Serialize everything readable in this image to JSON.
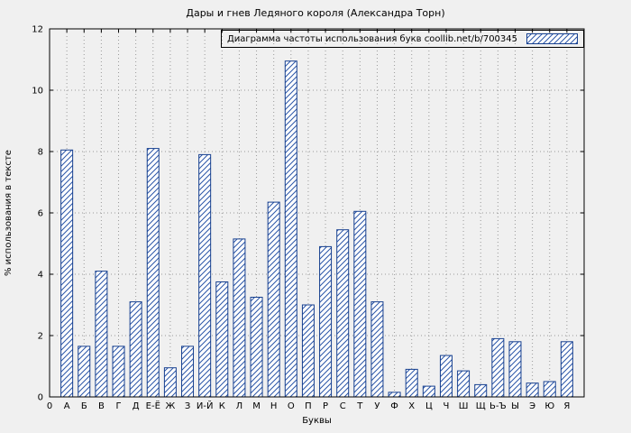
{
  "chart_data": {
    "type": "bar",
    "title": "Дары и гнев Ледяного короля (Александра Торн)",
    "legend": "Диаграмма частоты использования букв coollib.net/b/700345",
    "xlabel": "Буквы",
    "ylabel": "% использования в тексте",
    "origin_label": "0",
    "categories": [
      "А",
      "Б",
      "В",
      "Г",
      "Д",
      "Е-Ё",
      "Ж",
      "З",
      "И-Й",
      "К",
      "Л",
      "М",
      "Н",
      "О",
      "П",
      "Р",
      "С",
      "Т",
      "У",
      "Ф",
      "Х",
      "Ц",
      "Ч",
      "Ш",
      "Щ",
      "Ь-Ъ",
      "Ы",
      "Э",
      "Ю",
      "Я"
    ],
    "values": [
      8.05,
      1.65,
      4.1,
      1.65,
      3.1,
      8.1,
      0.95,
      1.65,
      7.9,
      3.75,
      5.15,
      3.25,
      6.35,
      10.95,
      3.0,
      4.9,
      5.45,
      6.05,
      3.1,
      0.15,
      0.9,
      0.35,
      1.35,
      0.85,
      0.4,
      1.9,
      1.8,
      0.45,
      0.5,
      1.8
    ],
    "ylim": [
      0,
      12
    ],
    "yticks": [
      0,
      2,
      4,
      6,
      8,
      10,
      12
    ],
    "grid": true,
    "legend_position": "top-right",
    "colors": {
      "bar_border": "#17408f",
      "hatch": "#2a55a8",
      "background": "#f0f0f0",
      "grid_line": "#9a9a9a"
    }
  }
}
